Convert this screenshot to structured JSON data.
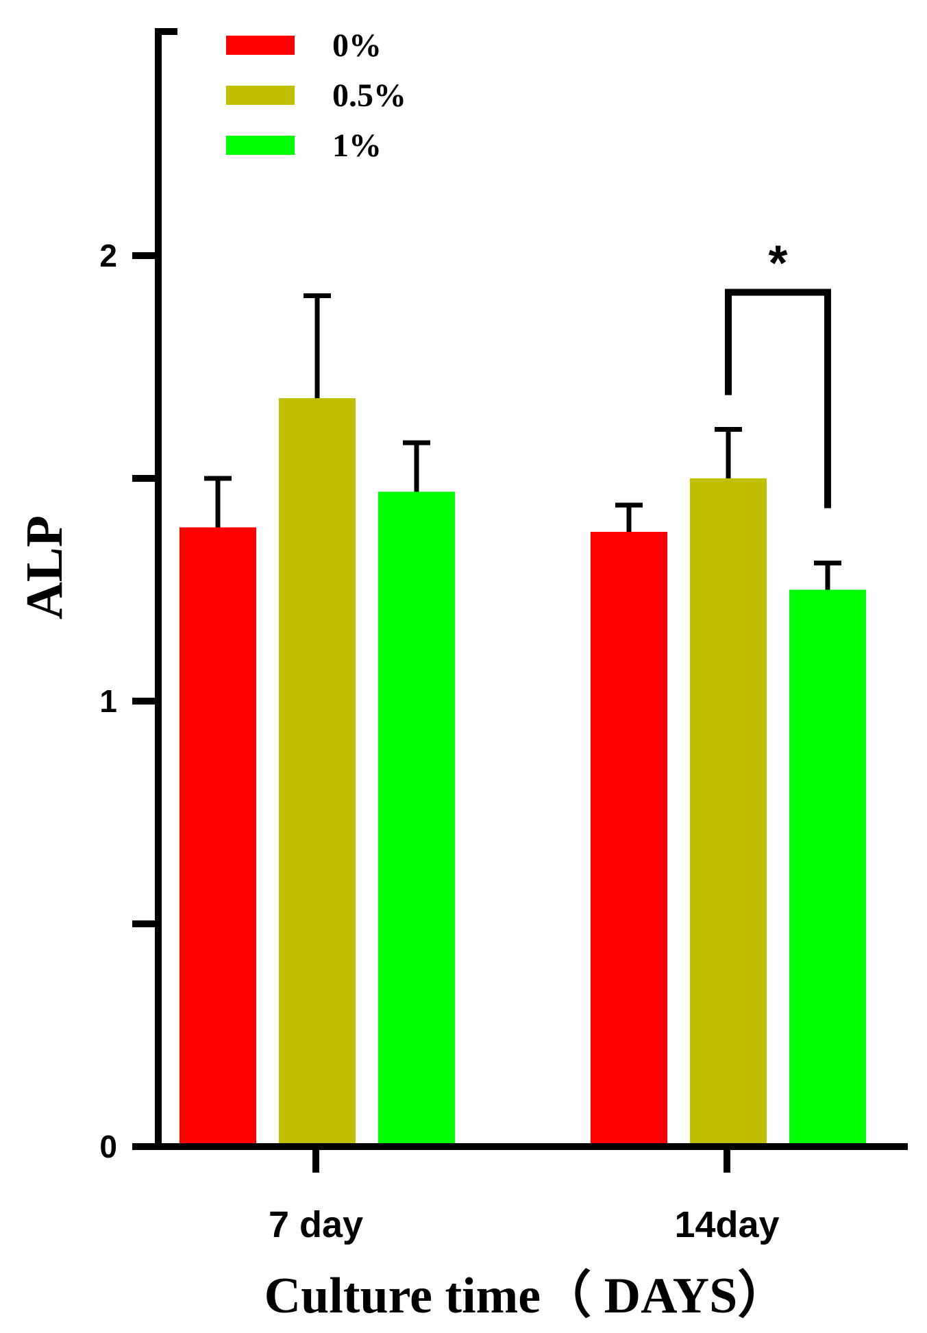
{
  "chart_data": {
    "type": "bar",
    "xlabel": "Culture time（ DAYS）",
    "ylabel": "ALP",
    "ylim": [
      0,
      2.5
    ],
    "yticks": [
      {
        "value": 0,
        "label": "0"
      },
      {
        "value": 0.5,
        "label": ""
      },
      {
        "value": 1,
        "label": "1"
      },
      {
        "value": 1.5,
        "label": ""
      },
      {
        "value": 2,
        "label": "2"
      }
    ],
    "categories": [
      "7 day",
      "14day"
    ],
    "series": [
      {
        "name": "0%",
        "color": "#ff0000",
        "values": [
          1.39,
          1.38
        ],
        "errors": [
          0.11,
          0.06
        ]
      },
      {
        "name": "0.5%",
        "color": "#bfbf00",
        "values": [
          1.68,
          1.5
        ],
        "errors": [
          0.23,
          0.11
        ]
      },
      {
        "name": "1%",
        "color": "#00ff00",
        "values": [
          1.47,
          1.25
        ],
        "errors": [
          0.11,
          0.06
        ]
      }
    ],
    "legend_position": "top-left",
    "annotations": [
      {
        "label": "*",
        "category": "14day",
        "from_series": "0.5%",
        "to_series": "1%"
      }
    ]
  }
}
